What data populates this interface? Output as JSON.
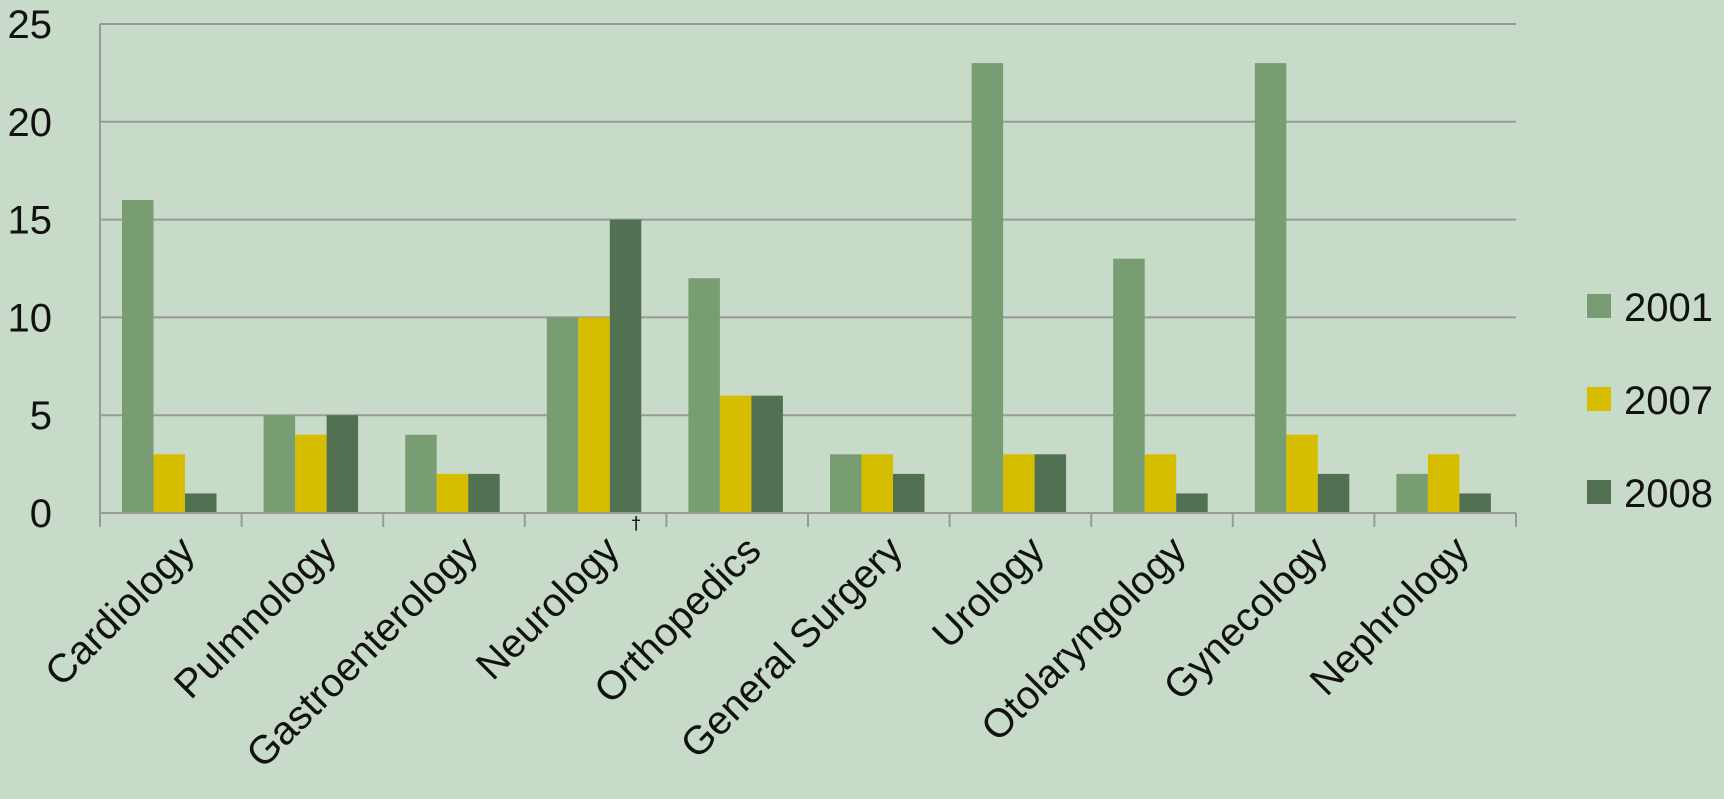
{
  "chart_data": {
    "type": "bar",
    "categories": [
      "Cardiology",
      "Pulmnology",
      "Gastroenterology",
      "Neurology",
      "Orthopedics",
      "General Surgery",
      "Urology",
      "Otolaryngology",
      "Gynecology",
      "Nephrology"
    ],
    "category_footnotes": {
      "Neurology": "†"
    },
    "series": [
      {
        "name": "2001",
        "color": "#789d72",
        "values": [
          16,
          5,
          4,
          10,
          12,
          3,
          23,
          13,
          23,
          2
        ]
      },
      {
        "name": "2007",
        "color": "#d6bd00",
        "values": [
          3,
          4,
          2,
          10,
          6,
          3,
          3,
          3,
          4,
          3
        ]
      },
      {
        "name": "2008",
        "color": "#527152",
        "values": [
          1,
          5,
          2,
          15,
          6,
          2,
          3,
          1,
          2,
          1
        ]
      }
    ],
    "y_ticks": [
      "0",
      "5",
      "10",
      "15",
      "20",
      "25"
    ],
    "ylim": [
      0,
      25
    ],
    "grid": true,
    "legend_position": "right",
    "title": "",
    "xlabel": "",
    "ylabel": "",
    "background": "#c8dac8",
    "gridline_color": "#999999"
  }
}
